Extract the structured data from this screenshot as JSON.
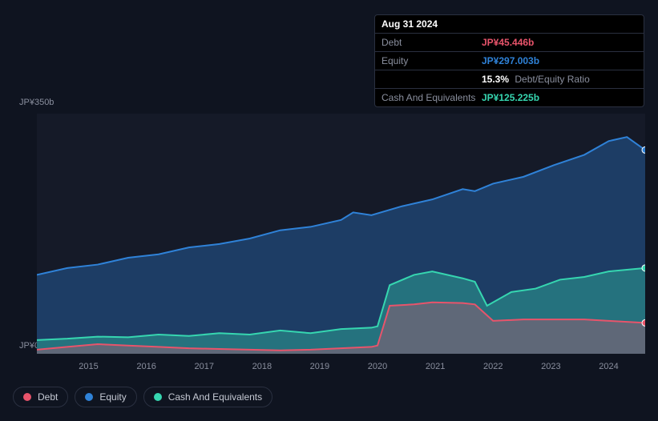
{
  "chart": {
    "type": "area",
    "background_color": "#151a28",
    "page_background": "#0f1420",
    "yaxis": {
      "top_label": "JP¥350b",
      "bottom_label": "JP¥0",
      "min": 0,
      "max": 350,
      "label_color": "#8a8f9e",
      "label_fontsize": 11
    },
    "xaxis": {
      "ticks": [
        "2015",
        "2016",
        "2017",
        "2018",
        "2019",
        "2020",
        "2021",
        "2022",
        "2023",
        "2024"
      ],
      "tick_positions_pct": [
        8.5,
        18,
        27.5,
        37,
        46.5,
        56,
        65.5,
        75,
        84.5,
        94
      ],
      "label_color": "#8a8f9e",
      "label_fontsize": 11
    },
    "series": {
      "equity": {
        "label": "Equity",
        "color": "#2f82d8",
        "fill_opacity": 0.35,
        "line_width": 2,
        "x_pct": [
          0,
          5,
          10,
          15,
          20,
          25,
          30,
          35,
          40,
          45,
          50,
          52,
          55,
          60,
          65,
          70,
          72,
          75,
          80,
          85,
          90,
          94,
          97,
          100
        ],
        "y_val": [
          115,
          125,
          130,
          140,
          145,
          155,
          160,
          168,
          180,
          185,
          195,
          206,
          202,
          215,
          225,
          240,
          237,
          248,
          258,
          275,
          290,
          310,
          316,
          297
        ]
      },
      "cash": {
        "label": "Cash And Equivalents",
        "color": "#36d6b0",
        "fill_opacity": 0.35,
        "line_width": 2,
        "x_pct": [
          0,
          5,
          10,
          15,
          20,
          25,
          30,
          35,
          40,
          45,
          50,
          55,
          56,
          58,
          62,
          65,
          70,
          72,
          74,
          78,
          82,
          86,
          90,
          94,
          100
        ],
        "y_val": [
          20,
          22,
          25,
          24,
          28,
          26,
          30,
          28,
          34,
          30,
          36,
          38,
          40,
          100,
          115,
          120,
          110,
          105,
          70,
          90,
          95,
          108,
          112,
          120,
          125
        ]
      },
      "debt": {
        "label": "Debt",
        "color": "#e8546b",
        "fill_opacity": 0.3,
        "line_width": 2,
        "x_pct": [
          0,
          5,
          10,
          15,
          20,
          25,
          30,
          35,
          40,
          45,
          50,
          55,
          56,
          58,
          62,
          65,
          70,
          72,
          75,
          80,
          85,
          90,
          94,
          100
        ],
        "y_val": [
          6,
          10,
          14,
          12,
          10,
          8,
          7,
          6,
          5,
          6,
          8,
          10,
          12,
          70,
          72,
          75,
          74,
          72,
          48,
          50,
          50,
          50,
          48,
          45
        ]
      }
    },
    "tooltip": {
      "date": "Aug 31 2024",
      "rows": [
        {
          "label": "Debt",
          "value": "JP¥45.446b",
          "color": "#e8546b"
        },
        {
          "label": "Equity",
          "value": "JP¥297.003b",
          "color": "#2f82d8"
        },
        {
          "label": "",
          "value": "15.3%",
          "color": "#ffffff",
          "suffix": "Debt/Equity Ratio"
        },
        {
          "label": "Cash And Equivalents",
          "value": "JP¥125.225b",
          "color": "#36d6b0"
        }
      ]
    },
    "legend": {
      "border_color": "#2a3040",
      "text_color": "#c5c9d3",
      "items": [
        {
          "label": "Debt",
          "color": "#e8546b"
        },
        {
          "label": "Equity",
          "color": "#2f82d8"
        },
        {
          "label": "Cash And Equivalents",
          "color": "#36d6b0"
        }
      ]
    }
  }
}
